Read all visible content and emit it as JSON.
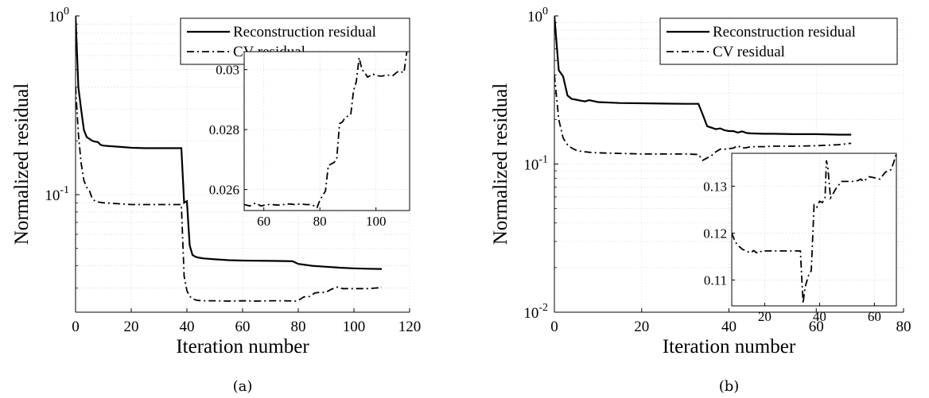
{
  "chart_data": [
    {
      "type": "line",
      "caption": "(a)",
      "xlabel": "Iteration number",
      "ylabel": "Normalized residual",
      "xlim": [
        0,
        120
      ],
      "xticks": [
        0,
        20,
        40,
        60,
        80,
        100,
        120
      ],
      "yscale": "log",
      "ylim": [
        0.022,
        1
      ],
      "yticks": [
        {
          "value": 0.1,
          "base": "10",
          "exp": "-1"
        },
        {
          "value": 1,
          "base": "10",
          "exp": "0"
        }
      ],
      "grid": true,
      "legend_position": "top-right",
      "series": [
        {
          "name": "Reconstruction residual",
          "style": "solid",
          "x": [
            0,
            1,
            2,
            3,
            4,
            5,
            6,
            7,
            8,
            9,
            10,
            12,
            14,
            16,
            18,
            20,
            25,
            30,
            35,
            38,
            39,
            40,
            41,
            42,
            43,
            44,
            46,
            50,
            55,
            60,
            65,
            70,
            75,
            78,
            80,
            85,
            90,
            95,
            100,
            105,
            110
          ],
          "y": [
            1.0,
            0.4,
            0.3,
            0.23,
            0.21,
            0.205,
            0.2,
            0.198,
            0.197,
            0.19,
            0.188,
            0.187,
            0.186,
            0.185,
            0.184,
            0.183,
            0.182,
            0.182,
            0.182,
            0.182,
            0.09,
            0.092,
            0.052,
            0.046,
            0.045,
            0.0445,
            0.044,
            0.0435,
            0.043,
            0.0428,
            0.0427,
            0.0426,
            0.0425,
            0.0424,
            0.041,
            0.04,
            0.0395,
            0.039,
            0.0387,
            0.0385,
            0.0384
          ]
        },
        {
          "name": "CV residual",
          "style": "dashdot",
          "x": [
            0,
            1,
            2,
            3,
            4,
            5,
            6,
            7,
            8,
            10,
            15,
            20,
            25,
            30,
            35,
            38,
            39,
            40,
            41,
            42,
            43,
            44,
            46,
            50,
            55,
            60,
            65,
            70,
            75,
            79,
            80,
            82,
            84,
            86,
            88,
            90,
            92,
            94,
            96,
            100,
            105,
            110
          ],
          "y": [
            0.4,
            0.22,
            0.15,
            0.12,
            0.11,
            0.105,
            0.095,
            0.092,
            0.091,
            0.09,
            0.089,
            0.088,
            0.088,
            0.088,
            0.088,
            0.088,
            0.035,
            0.029,
            0.027,
            0.0262,
            0.0258,
            0.0256,
            0.0255,
            0.0255,
            0.0254,
            0.0255,
            0.0254,
            0.0255,
            0.0255,
            0.0254,
            0.0256,
            0.0268,
            0.0269,
            0.0282,
            0.0284,
            0.0285,
            0.0296,
            0.0304,
            0.0298,
            0.0298,
            0.0298,
            0.0302
          ]
        }
      ],
      "inset": {
        "xlim": [
          53,
          112
        ],
        "ylim": [
          0.0253,
          0.0306
        ],
        "xticks": [
          60,
          80,
          100
        ],
        "yticks": [
          0.026,
          0.028,
          0.03
        ],
        "ytick_labels": [
          "0.026",
          "0.028",
          "0.03"
        ],
        "series": [
          {
            "style": "dashdot",
            "x": [
              53,
              55,
              57,
              59,
              61,
              63,
              65,
              67,
              69,
              71,
              73,
              75,
              77,
              79,
              80,
              81,
              82,
              83,
              84,
              85,
              86,
              87,
              88,
              89,
              90,
              91,
              92,
              93,
              94,
              95,
              96,
              97,
              98,
              99,
              100,
              102,
              104,
              106,
              108,
              110,
              111
            ],
            "y": [
              0.0255,
              0.02545,
              0.02555,
              0.02545,
              0.0255,
              0.0255,
              0.02548,
              0.0255,
              0.02552,
              0.0255,
              0.02552,
              0.0255,
              0.0255,
              0.0254,
              0.02565,
              0.0258,
              0.02595,
              0.0268,
              0.02685,
              0.0269,
              0.027,
              0.0282,
              0.02825,
              0.0284,
              0.02845,
              0.0285,
              0.0293,
              0.0296,
              0.0304,
              0.03,
              0.0299,
              0.02975,
              0.0298,
              0.02985,
              0.0298,
              0.02978,
              0.02982,
              0.0298,
              0.02995,
              0.0299,
              0.0306
            ]
          }
        ]
      }
    },
    {
      "type": "line",
      "caption": "(b)",
      "xlabel": "Iteration number",
      "ylabel": "Normalized residual",
      "xlim": [
        0,
        80
      ],
      "xticks": [
        0,
        20,
        40,
        60,
        80
      ],
      "yscale": "log",
      "ylim": [
        0.01,
        1
      ],
      "yticks": [
        {
          "value": 0.01,
          "base": "10",
          "exp": "-2"
        },
        {
          "value": 0.1,
          "base": "10",
          "exp": "-1"
        },
        {
          "value": 1,
          "base": "10",
          "exp": "0"
        }
      ],
      "grid": true,
      "legend_position": "top-right",
      "series": [
        {
          "name": "Reconstruction residual",
          "style": "solid",
          "x": [
            0,
            1,
            2,
            3,
            4,
            5,
            6,
            7,
            8,
            10,
            15,
            20,
            25,
            30,
            33,
            34,
            35,
            36,
            37,
            38,
            39,
            40,
            41,
            42,
            43,
            44,
            45,
            48,
            50,
            55,
            60,
            65,
            68
          ],
          "y": [
            1.0,
            0.43,
            0.39,
            0.29,
            0.275,
            0.272,
            0.268,
            0.265,
            0.27,
            0.262,
            0.258,
            0.257,
            0.256,
            0.255,
            0.255,
            0.215,
            0.18,
            0.176,
            0.172,
            0.174,
            0.169,
            0.167,
            0.167,
            0.163,
            0.166,
            0.162,
            0.161,
            0.16,
            0.16,
            0.159,
            0.159,
            0.158,
            0.158
          ]
        },
        {
          "name": "CV residual",
          "style": "dashdot",
          "x": [
            0,
            1,
            2,
            3,
            4,
            5,
            6,
            8,
            10,
            15,
            20,
            25,
            30,
            33,
            34,
            35,
            36,
            37,
            38,
            39,
            40,
            41,
            42,
            43,
            44,
            45,
            48,
            50,
            55,
            60,
            65,
            68
          ],
          "y": [
            0.4,
            0.2,
            0.15,
            0.135,
            0.128,
            0.124,
            0.122,
            0.12,
            0.119,
            0.118,
            0.117,
            0.117,
            0.117,
            0.116,
            0.106,
            0.11,
            0.114,
            0.121,
            0.126,
            0.126,
            0.127,
            0.128,
            0.133,
            0.128,
            0.129,
            0.131,
            0.131,
            0.132,
            0.132,
            0.133,
            0.135,
            0.138
          ]
        }
      ],
      "inset": {
        "xlim": [
          8,
          68
        ],
        "ylim": [
          0.1045,
          0.137
        ],
        "xticks": [
          20,
          40,
          60
        ],
        "yticks": [
          0.11,
          0.12,
          0.13
        ],
        "ytick_labels": [
          "0.11",
          "0.12",
          "0.13"
        ],
        "series": [
          {
            "style": "dashdot",
            "x": [
              8,
              9,
              10,
              11,
              12,
              13,
              14,
              15,
              16,
              17,
              18,
              19,
              20,
              22,
              24,
              26,
              28,
              30,
              32,
              33,
              34,
              34.5,
              35,
              36,
              37,
              38,
              39,
              40,
              41,
              42,
              42.5,
              43,
              44,
              45,
              46,
              48,
              50,
              52,
              54,
              55,
              56,
              58,
              60,
              62,
              64,
              66,
              67,
              68
            ],
            "y": [
              0.12,
              0.1185,
              0.1175,
              0.117,
              0.1165,
              0.1163,
              0.116,
              0.1158,
              0.1163,
              0.1158,
              0.1162,
              0.116,
              0.1162,
              0.1162,
              0.1162,
              0.1162,
              0.1162,
              0.1162,
              0.1162,
              0.1162,
              0.105,
              0.1075,
              0.109,
              0.111,
              0.112,
              0.126,
              0.1255,
              0.1268,
              0.1265,
              0.1275,
              0.1355,
              0.134,
              0.1275,
              0.1285,
              0.1295,
              0.131,
              0.131,
              0.131,
              0.1312,
              0.1315,
              0.131,
              0.132,
              0.1318,
              0.1315,
              0.133,
              0.1335,
              0.135,
              0.137
            ]
          }
        ]
      }
    }
  ]
}
